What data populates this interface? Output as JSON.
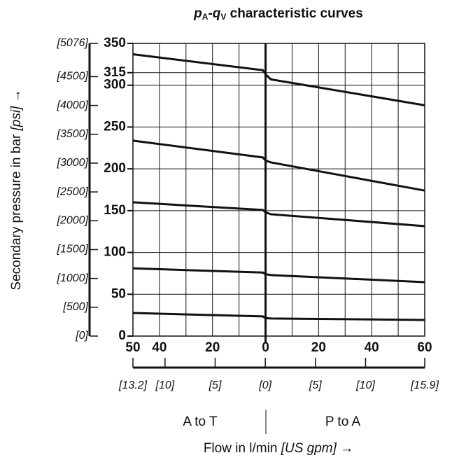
{
  "chart_data": {
    "type": "line",
    "title": {
      "p": "p",
      "p_sub": "A",
      "dash": "-",
      "q": "q",
      "q_sub": "V",
      "rest": " characteristic curves"
    },
    "ylabel": {
      "main": "Secondary pressure in bar ",
      "unit": "[psi]",
      "arrow": " →"
    },
    "xlabel": {
      "main": "Flow in l/min ",
      "unit": "[US gpm]",
      "arrow": " →"
    },
    "regions": [
      "A to T",
      "P to A"
    ],
    "x": [
      -50,
      -1,
      0,
      2,
      60
    ],
    "series": [
      {
        "color": "#111111",
        "values": [
          337,
          318,
          313,
          307,
          276
        ]
      },
      {
        "color": "#111111",
        "values": [
          233.7,
          213.6,
          210,
          207.7,
          174
        ]
      },
      {
        "color": "#111111",
        "values": [
          160,
          150.8,
          148,
          145.7,
          131.5
        ]
      },
      {
        "color": "#111111",
        "values": [
          81,
          76,
          74,
          73,
          64.5
        ]
      },
      {
        "color": "#111111",
        "values": [
          27.6,
          23.5,
          21.5,
          21,
          19.3
        ]
      }
    ],
    "xlim": [
      -50,
      60
    ],
    "xticks": [
      {
        "value": -50,
        "label": "50"
      },
      {
        "value": -40,
        "label": "40"
      },
      {
        "value": -20,
        "label": "20"
      },
      0,
      20,
      40,
      60
    ],
    "xgrid": [
      -50,
      -40,
      -30,
      -20,
      -10,
      0,
      10,
      20,
      30,
      40,
      50,
      60
    ],
    "ylim": [
      0,
      350
    ],
    "yticks": [
      0,
      50,
      100,
      150,
      200,
      250,
      300,
      315,
      350
    ],
    "y2lim": [
      0,
      5076
    ],
    "y2ticks": [
      {
        "value": 0,
        "label": "[0]"
      },
      {
        "value": 500,
        "label": "[500]"
      },
      {
        "value": 1000,
        "label": "[1000]"
      },
      {
        "value": 1500,
        "label": "[1500]"
      },
      {
        "value": 2000,
        "label": "[2000]"
      },
      {
        "value": 2500,
        "label": "[2500]"
      },
      {
        "value": 3000,
        "label": "[3000]"
      },
      {
        "value": 3500,
        "label": "[3500]"
      },
      {
        "value": 4000,
        "label": "[4000]"
      },
      {
        "value": 4500,
        "label": "[4500]"
      },
      {
        "value": 5076,
        "label": "[5076]"
      }
    ],
    "x2lim": [
      -13.2,
      15.9
    ],
    "x2ticks": [
      {
        "value": -13.2,
        "label": "[13.2]"
      },
      {
        "value": -10,
        "label": "[10]"
      },
      {
        "value": -5,
        "label": "[5]"
      },
      {
        "value": 0,
        "label": "[0]"
      },
      {
        "value": 5,
        "label": "[5]"
      },
      {
        "value": 10,
        "label": "[10]"
      },
      {
        "value": 15.9,
        "label": "[15.9]"
      }
    ],
    "grid": true
  }
}
